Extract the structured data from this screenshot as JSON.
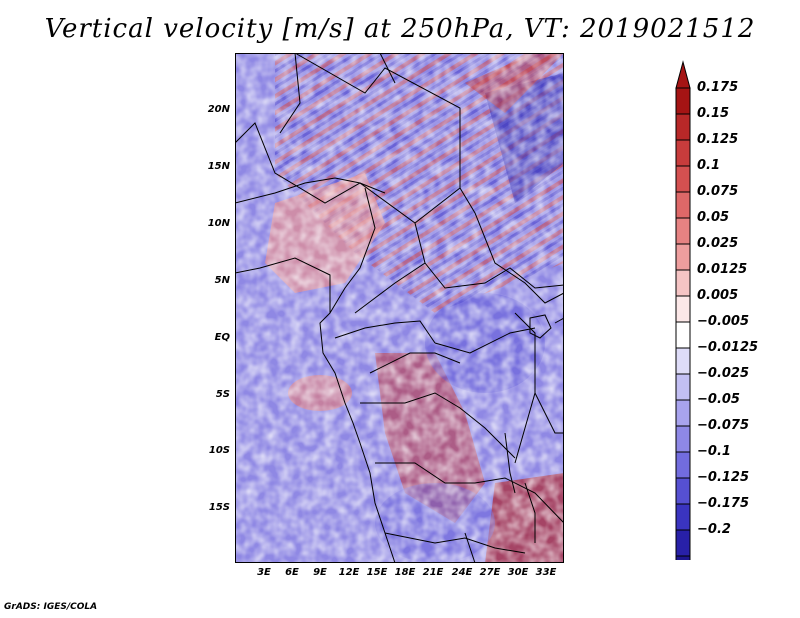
{
  "title": "Vertical velocity [m/s] at 250hPa, VT: 2019021512",
  "footer": "GrADS: IGES/COLA",
  "map": {
    "lat_labels": [
      "20N",
      "15N",
      "10N",
      "5N",
      "EQ",
      "5S",
      "10S",
      "15S"
    ],
    "lon_labels": [
      "3E",
      "6E",
      "9E",
      "12E",
      "15E",
      "18E",
      "21E",
      "24E",
      "27E",
      "30E",
      "33E"
    ]
  },
  "colorbar": {
    "labels": [
      "0.175",
      "0.15",
      "0.125",
      "0.1",
      "0.075",
      "0.05",
      "0.025",
      "0.0125",
      "0.005",
      "−0.005",
      "−0.0125",
      "−0.025",
      "−0.05",
      "−0.075",
      "−0.1",
      "−0.125",
      "−0.175",
      "−0.2"
    ],
    "colors": [
      "#a51414",
      "#b82828",
      "#c83c3c",
      "#d45050",
      "#de6868",
      "#e68282",
      "#ee9e9e",
      "#f5c4c4",
      "#fce8e8",
      "#ffffff",
      "#dedcf8",
      "#c2bff3",
      "#a8a3ee",
      "#8e88e6",
      "#726cde",
      "#5650d2",
      "#3a34c0",
      "#2820a8",
      "#1e1690"
    ]
  }
}
